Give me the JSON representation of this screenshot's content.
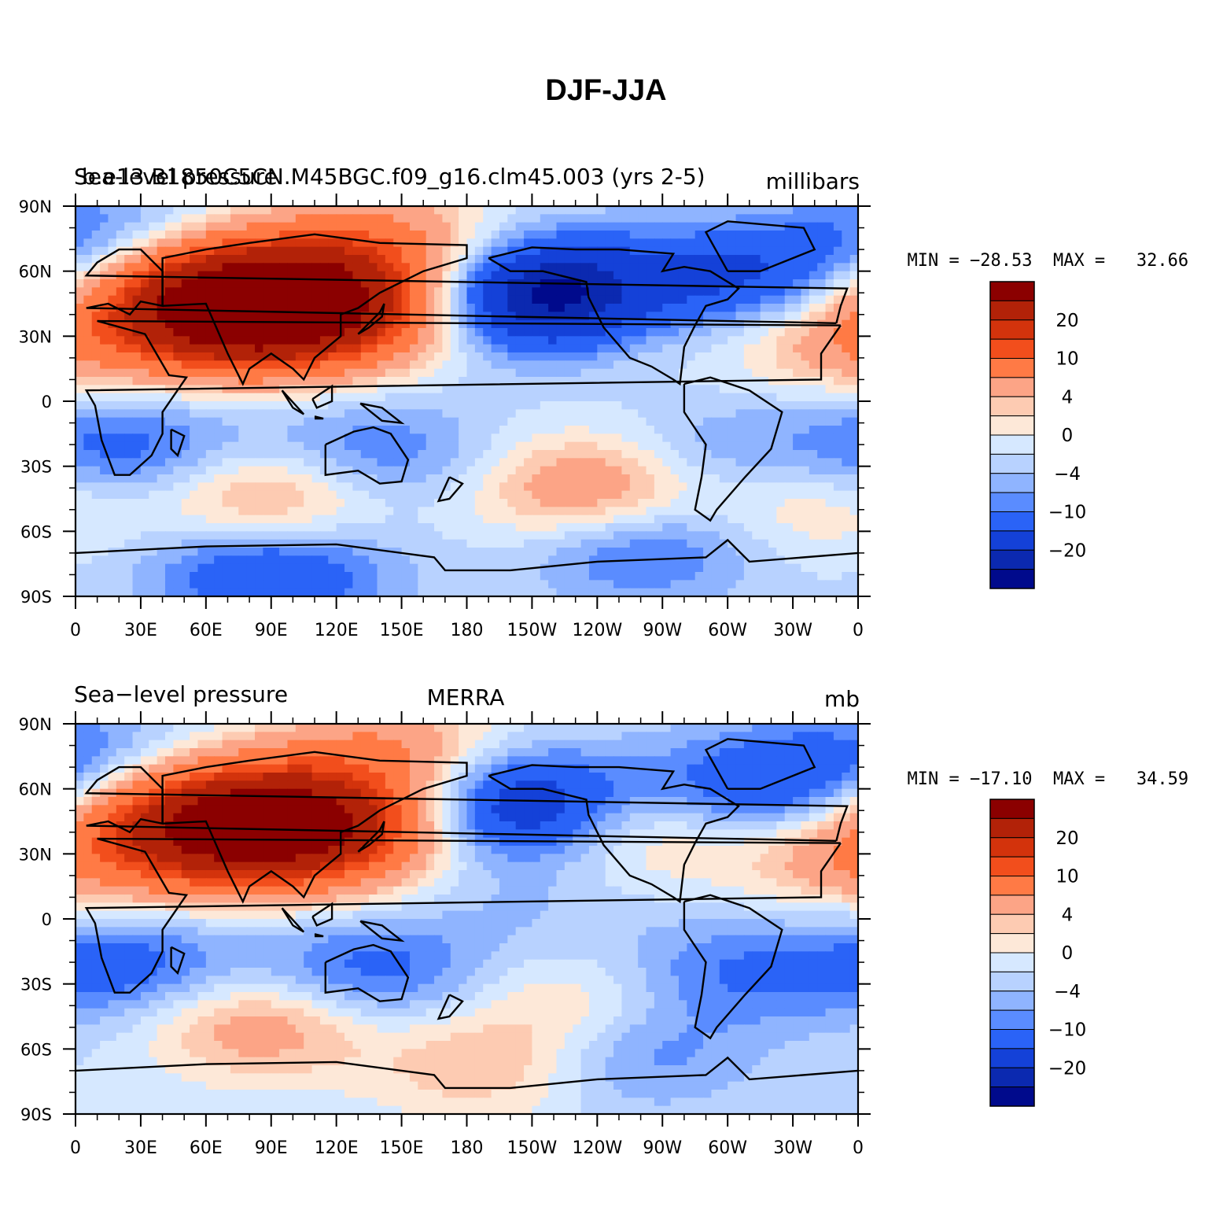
{
  "title": "DJF-JJA",
  "colors": {
    "levels": [
      "#8b0000",
      "#b22208",
      "#d3330c",
      "#f24e1c",
      "#ff7a45",
      "#fca486",
      "#fdcbb2",
      "#fde8d8",
      "#d6e8ff",
      "#b8d2ff",
      "#8fb4ff",
      "#5a8cff",
      "#2a63f7",
      "#1441d8",
      "#0b29b0",
      "#000a8c"
    ],
    "coast": "#000000"
  },
  "chart_data": [
    {
      "type": "heatmap",
      "title_left": "Sea-level pressure",
      "title_center": "b.e13.B1850C5CN.M45BGC.f09_g16.clm45.003 (yrs 2-5)",
      "title_right": "millibars",
      "min_text": "MIN = −28.53",
      "max_text": "MAX =   32.66",
      "x_ticks": [
        "0",
        "30E",
        "60E",
        "90E",
        "120E",
        "150E",
        "180",
        "150W",
        "120W",
        "90W",
        "60W",
        "30W",
        "0"
      ],
      "y_ticks": [
        "90N",
        "60N",
        "30N",
        "0",
        "30S",
        "60S",
        "90S"
      ],
      "colorbar_labels": [
        "20",
        "10",
        "4",
        "0",
        "−4",
        "−10",
        "−20"
      ],
      "features": [
        {
          "lon": 95,
          "lat": 47,
          "val": 26
        },
        {
          "lon": 70,
          "lat": 35,
          "val": 18
        },
        {
          "lon": 130,
          "lat": 40,
          "val": 12
        },
        {
          "lon": 50,
          "lat": 55,
          "val": 14
        },
        {
          "lon": 140,
          "lat": 72,
          "val": 11
        },
        {
          "lon": 220,
          "lat": 48,
          "val": -28
        },
        {
          "lon": 245,
          "lat": 42,
          "val": 8
        },
        {
          "lon": 305,
          "lat": 55,
          "val": -11
        },
        {
          "lon": 355,
          "lat": 30,
          "val": 9
        },
        {
          "lon": 25,
          "lat": -22,
          "val": -8
        },
        {
          "lon": 135,
          "lat": -25,
          "val": -7
        },
        {
          "lon": 300,
          "lat": -28,
          "val": -6
        },
        {
          "lon": 90,
          "lat": -45,
          "val": 10
        },
        {
          "lon": 240,
          "lat": -42,
          "val": 12
        },
        {
          "lon": 330,
          "lat": -45,
          "val": 6
        },
        {
          "lon": 260,
          "lat": -65,
          "val": -9
        },
        {
          "lon": 90,
          "lat": -78,
          "val": -11
        },
        {
          "lon": 15,
          "lat": 72,
          "val": -8
        }
      ]
    },
    {
      "type": "heatmap",
      "title_left": "Sea−level pressure",
      "title_center": "MERRA",
      "title_right": "mb",
      "min_text": "MIN = −17.10",
      "max_text": "MAX =   34.59",
      "x_ticks": [
        "0",
        "30E",
        "60E",
        "90E",
        "120E",
        "150E",
        "180",
        "150W",
        "120W",
        "90W",
        "60W",
        "30W",
        "0"
      ],
      "y_ticks": [
        "90N",
        "60N",
        "30N",
        "0",
        "30S",
        "60S",
        "90S"
      ],
      "colorbar_labels": [
        "20",
        "10",
        "4",
        "0",
        "−4",
        "−10",
        "−20"
      ],
      "features": [
        {
          "lon": 95,
          "lat": 45,
          "val": 24
        },
        {
          "lon": 60,
          "lat": 35,
          "val": 16
        },
        {
          "lon": 125,
          "lat": 40,
          "val": 12
        },
        {
          "lon": 40,
          "lat": 58,
          "val": 12
        },
        {
          "lon": 145,
          "lat": 76,
          "val": 10
        },
        {
          "lon": 205,
          "lat": 52,
          "val": -17
        },
        {
          "lon": 255,
          "lat": 42,
          "val": 7
        },
        {
          "lon": 315,
          "lat": 60,
          "val": -10
        },
        {
          "lon": 355,
          "lat": 30,
          "val": 8
        },
        {
          "lon": 25,
          "lat": -22,
          "val": -8
        },
        {
          "lon": 135,
          "lat": -25,
          "val": -8
        },
        {
          "lon": 300,
          "lat": -25,
          "val": -6
        },
        {
          "lon": 85,
          "lat": -48,
          "val": 9
        },
        {
          "lon": 230,
          "lat": -40,
          "val": 5
        },
        {
          "lon": 255,
          "lat": -62,
          "val": -6
        },
        {
          "lon": 190,
          "lat": -68,
          "val": 6
        },
        {
          "lon": 15,
          "lat": 70,
          "val": -9
        },
        {
          "lon": 210,
          "lat": 5,
          "val": -2
        }
      ]
    }
  ]
}
